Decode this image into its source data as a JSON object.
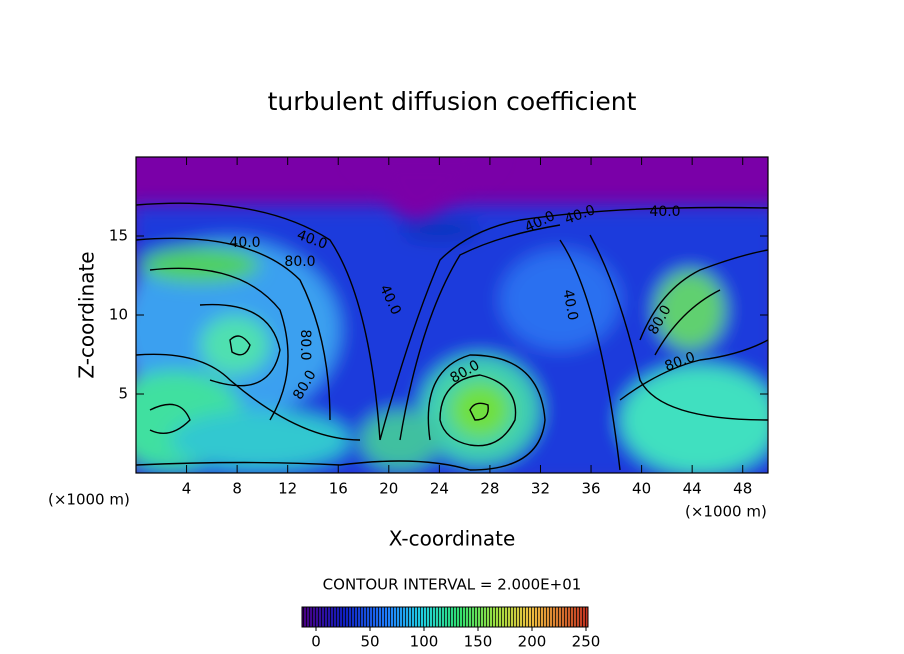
{
  "chart_data": {
    "type": "contour",
    "title": "turbulent diffusion coefficient",
    "xlabel": "X-coordinate",
    "ylabel": "Z-coordinate",
    "x_unit_label": "(×1000 m)",
    "x_unit_label_right": "(×1000 m)",
    "xlim": [
      0,
      50
    ],
    "ylim": [
      0,
      20
    ],
    "xticks": [
      4,
      8,
      12,
      16,
      20,
      24,
      28,
      32,
      36,
      40,
      44,
      48
    ],
    "yticks": [
      5,
      10,
      15
    ],
    "contour_labels": [
      "40.0",
      "40.0",
      "40.0",
      "40.0",
      "80.0",
      "80.0",
      "80.0",
      "80.0",
      "80.0",
      "40.0",
      "80.0",
      "40.0",
      "40.0"
    ],
    "contour_interval_text": "CONTOUR INTERVAL = 2.000E+01",
    "colorbar_lim": [
      0,
      250
    ],
    "colorbar_ticks": [
      0,
      50,
      100,
      150,
      200,
      250
    ]
  }
}
